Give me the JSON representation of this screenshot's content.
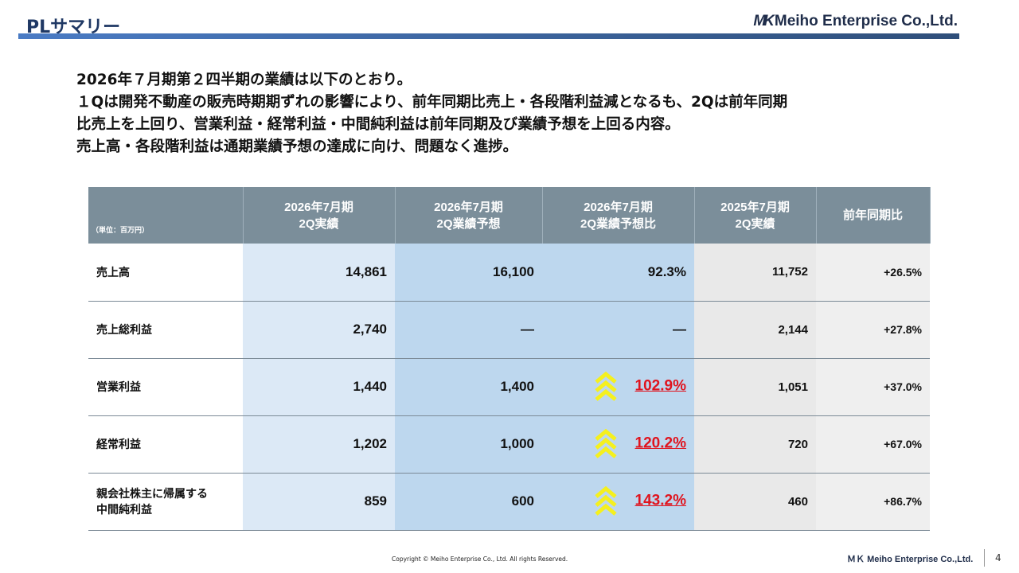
{
  "header": {
    "title": "PLサマリー",
    "company": "Meiho Enterprise Co.,Ltd."
  },
  "intro": [
    "2026年７月期第２四半期の業績は以下のとおり。",
    "１Qは開発不動産の販売時期期ずれの影響により、前年同期比売上・各段階利益減となるも、2Qは前年同期",
    "比売上を上回り、営業利益・経常利益・中間純利益は前年同期及び業績予想を上回る内容。",
    "売上高・各段階利益は通期業績予想の達成に向け、問題なく進捗。"
  ],
  "table": {
    "unit": "（単位：百万円）",
    "headers": [
      [
        "2026年7月期",
        "2Q実績"
      ],
      [
        "2026年7月期",
        "2Q業績予想"
      ],
      [
        "2026年7月期",
        "2Q業績予想比"
      ],
      [
        "2025年7月期",
        "2Q実績"
      ],
      [
        "前年同期比",
        ""
      ]
    ],
    "rows": [
      {
        "label": [
          "売上高",
          ""
        ],
        "actual": "14,861",
        "forecast": "16,100",
        "ratio": "92.3%",
        "up": false,
        "prev": "11,752",
        "yoy": "+26.5%"
      },
      {
        "label": [
          "売上総利益",
          ""
        ],
        "actual": "2,740",
        "forecast": "—",
        "ratio": "—",
        "up": false,
        "prev": "2,144",
        "yoy": "+27.8%"
      },
      {
        "label": [
          "営業利益",
          ""
        ],
        "actual": "1,440",
        "forecast": "1,400",
        "ratio": "102.9%",
        "up": true,
        "prev": "1,051",
        "yoy": "+37.0%"
      },
      {
        "label": [
          "経常利益",
          ""
        ],
        "actual": "1,202",
        "forecast": "1,000",
        "ratio": "120.2%",
        "up": true,
        "prev": "720",
        "yoy": "+67.0%"
      },
      {
        "label": [
          "親会社株主に帰属する",
          "中間純利益"
        ],
        "actual": "859",
        "forecast": "600",
        "ratio": "143.2%",
        "up": true,
        "prev": "460",
        "yoy": "+86.7%"
      }
    ]
  },
  "colors": {
    "accent_red": "#e0141e",
    "arrow": "#f5f01e",
    "header_bg": "#7b8e9a"
  },
  "footer": {
    "copyright": "Copyright © Meiho Enterprise Co., Ltd. All rights Reserved.",
    "logo": "Meiho Enterprise Co.,Ltd.",
    "page": "4"
  }
}
